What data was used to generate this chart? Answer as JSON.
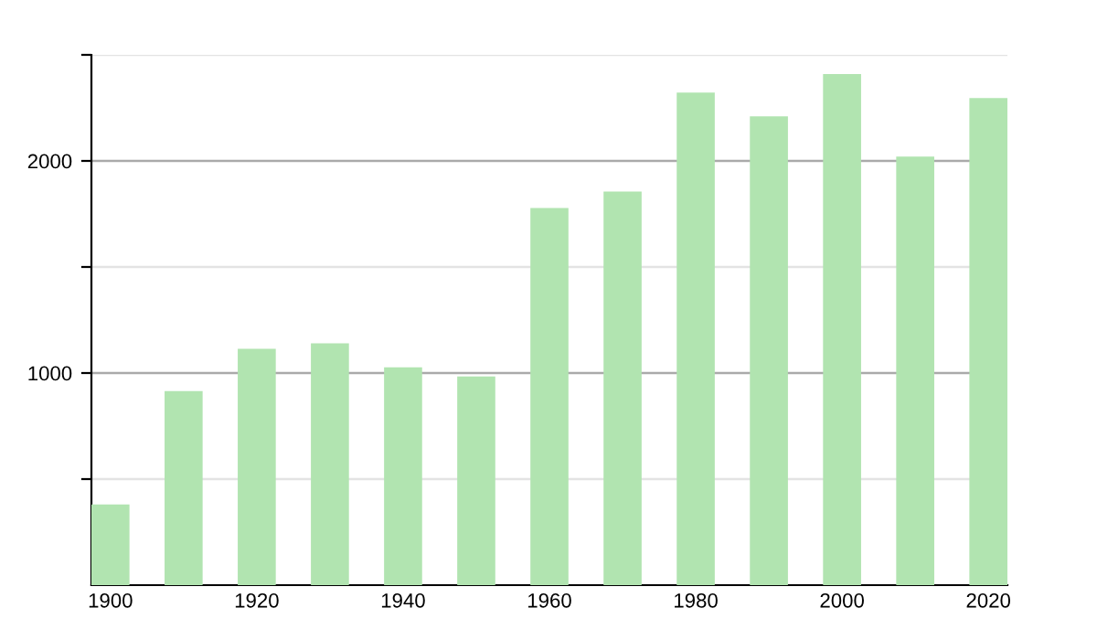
{
  "chart_data": {
    "type": "bar",
    "categories": [
      "1900",
      null,
      "1920",
      null,
      "1940",
      null,
      "1960",
      null,
      "1980",
      null,
      "2000",
      null,
      "2020"
    ],
    "values": [
      380,
      915,
      1114,
      1140,
      1027,
      984,
      1778,
      1856,
      2322,
      2210,
      2409,
      2020,
      2296
    ],
    "color": "#b1e4b0",
    "ylim": [
      0,
      2500
    ],
    "yticks": [
      {
        "value": 500,
        "label": null
      },
      1000,
      {
        "value": 1500,
        "label": null
      },
      2000,
      {
        "value": 2500,
        "label": null
      }
    ],
    "grid": "y",
    "legend": false
  }
}
